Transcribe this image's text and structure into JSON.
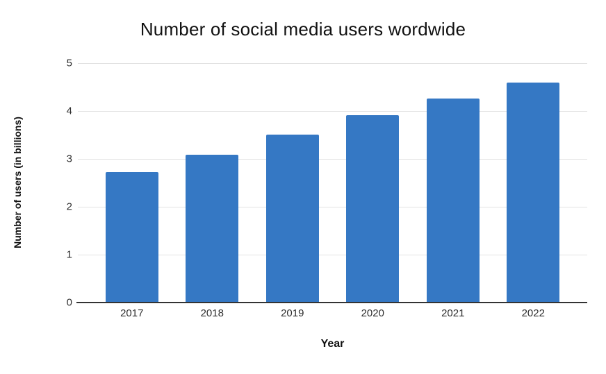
{
  "chart_data": {
    "type": "bar",
    "title": "Number of social media users wordwide",
    "xlabel": "Year",
    "ylabel": "Number of users (in billions)",
    "categories": [
      "2017",
      "2018",
      "2019",
      "2020",
      "2021",
      "2022"
    ],
    "values": [
      2.73,
      3.09,
      3.51,
      3.91,
      4.26,
      4.59
    ],
    "ylim": [
      0,
      5
    ],
    "yticks": [
      0,
      1,
      2,
      3,
      4,
      5
    ],
    "grid": "horizontal",
    "legend": "none",
    "colors": {
      "bar_fill": "#3578c4",
      "gridline": "#e2e2e2",
      "axis_line": "#333333",
      "title_text": "#111111",
      "tick_text": "#2e2e2e"
    }
  }
}
